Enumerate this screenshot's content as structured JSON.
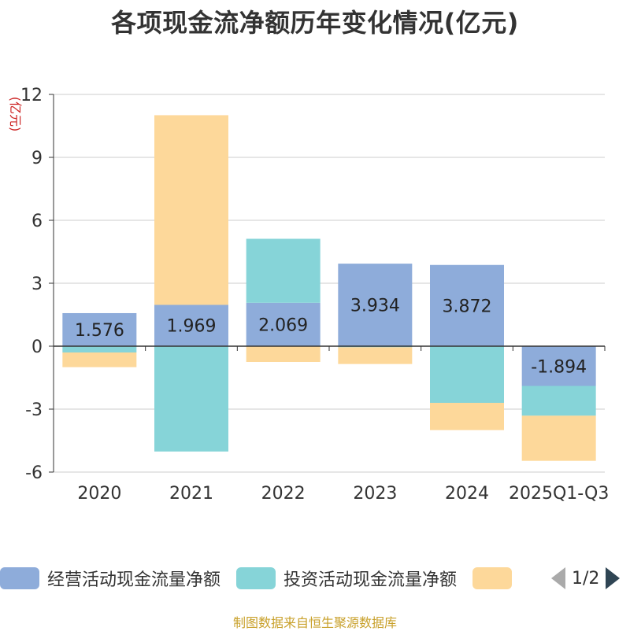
{
  "chart_data": {
    "type": "bar",
    "stacked": true,
    "title": "各项现金流净额历年变化情况(亿元)",
    "ylabel": "(亿元)",
    "categories": [
      "2020",
      "2021",
      "2022",
      "2023",
      "2024",
      "2025Q1-Q3"
    ],
    "ylim": [
      -6,
      12
    ],
    "yticks": [
      -6,
      -3,
      0,
      3,
      6,
      9,
      12
    ],
    "ytick_labels": [
      "-6",
      "-3",
      "0",
      "3",
      "6",
      "9",
      "12"
    ],
    "series": [
      {
        "name": "经营活动现金流量净额",
        "color": "#8eacda",
        "values": [
          1.576,
          1.969,
          2.069,
          3.934,
          3.872,
          -1.894
        ]
      },
      {
        "name": "投资活动现金流量净额",
        "color": "#86d4d8",
        "values": [
          -0.3,
          -5.02,
          3.05,
          -0.05,
          -2.7,
          -1.42
        ]
      },
      {
        "name": "",
        "color": "#fdd89a",
        "values": [
          -0.7,
          9.04,
          -0.75,
          -0.8,
          -1.3,
          -2.15
        ]
      }
    ],
    "data_labels": [
      "1.576",
      "1.969",
      "2.069",
      "3.934",
      "3.872",
      "-1.894"
    ],
    "legend_position": "bottom"
  },
  "legend": {
    "items": [
      {
        "label": "经营活动现金流量净额",
        "color": "#8eacda"
      },
      {
        "label": "投资活动现金流量净额",
        "color": "#86d4d8"
      },
      {
        "label": "",
        "color": "#fdd89a"
      }
    ],
    "page_indicator": "1/2"
  },
  "source": "制图数据来自恒生聚源数据库"
}
